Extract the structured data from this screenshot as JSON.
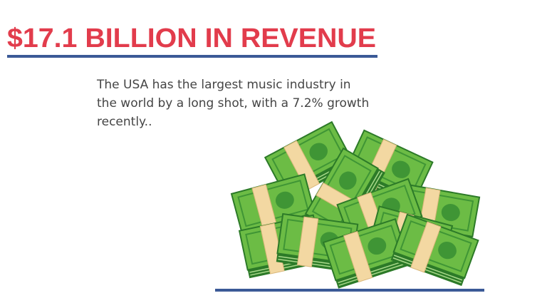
{
  "header": {
    "title": "$17.1 BILLION IN REVENUE"
  },
  "body": {
    "lines": [
      "The USA has the largest music industry in",
      "the world by a long shot, with a 7.2% growth",
      "recently.."
    ]
  }
}
